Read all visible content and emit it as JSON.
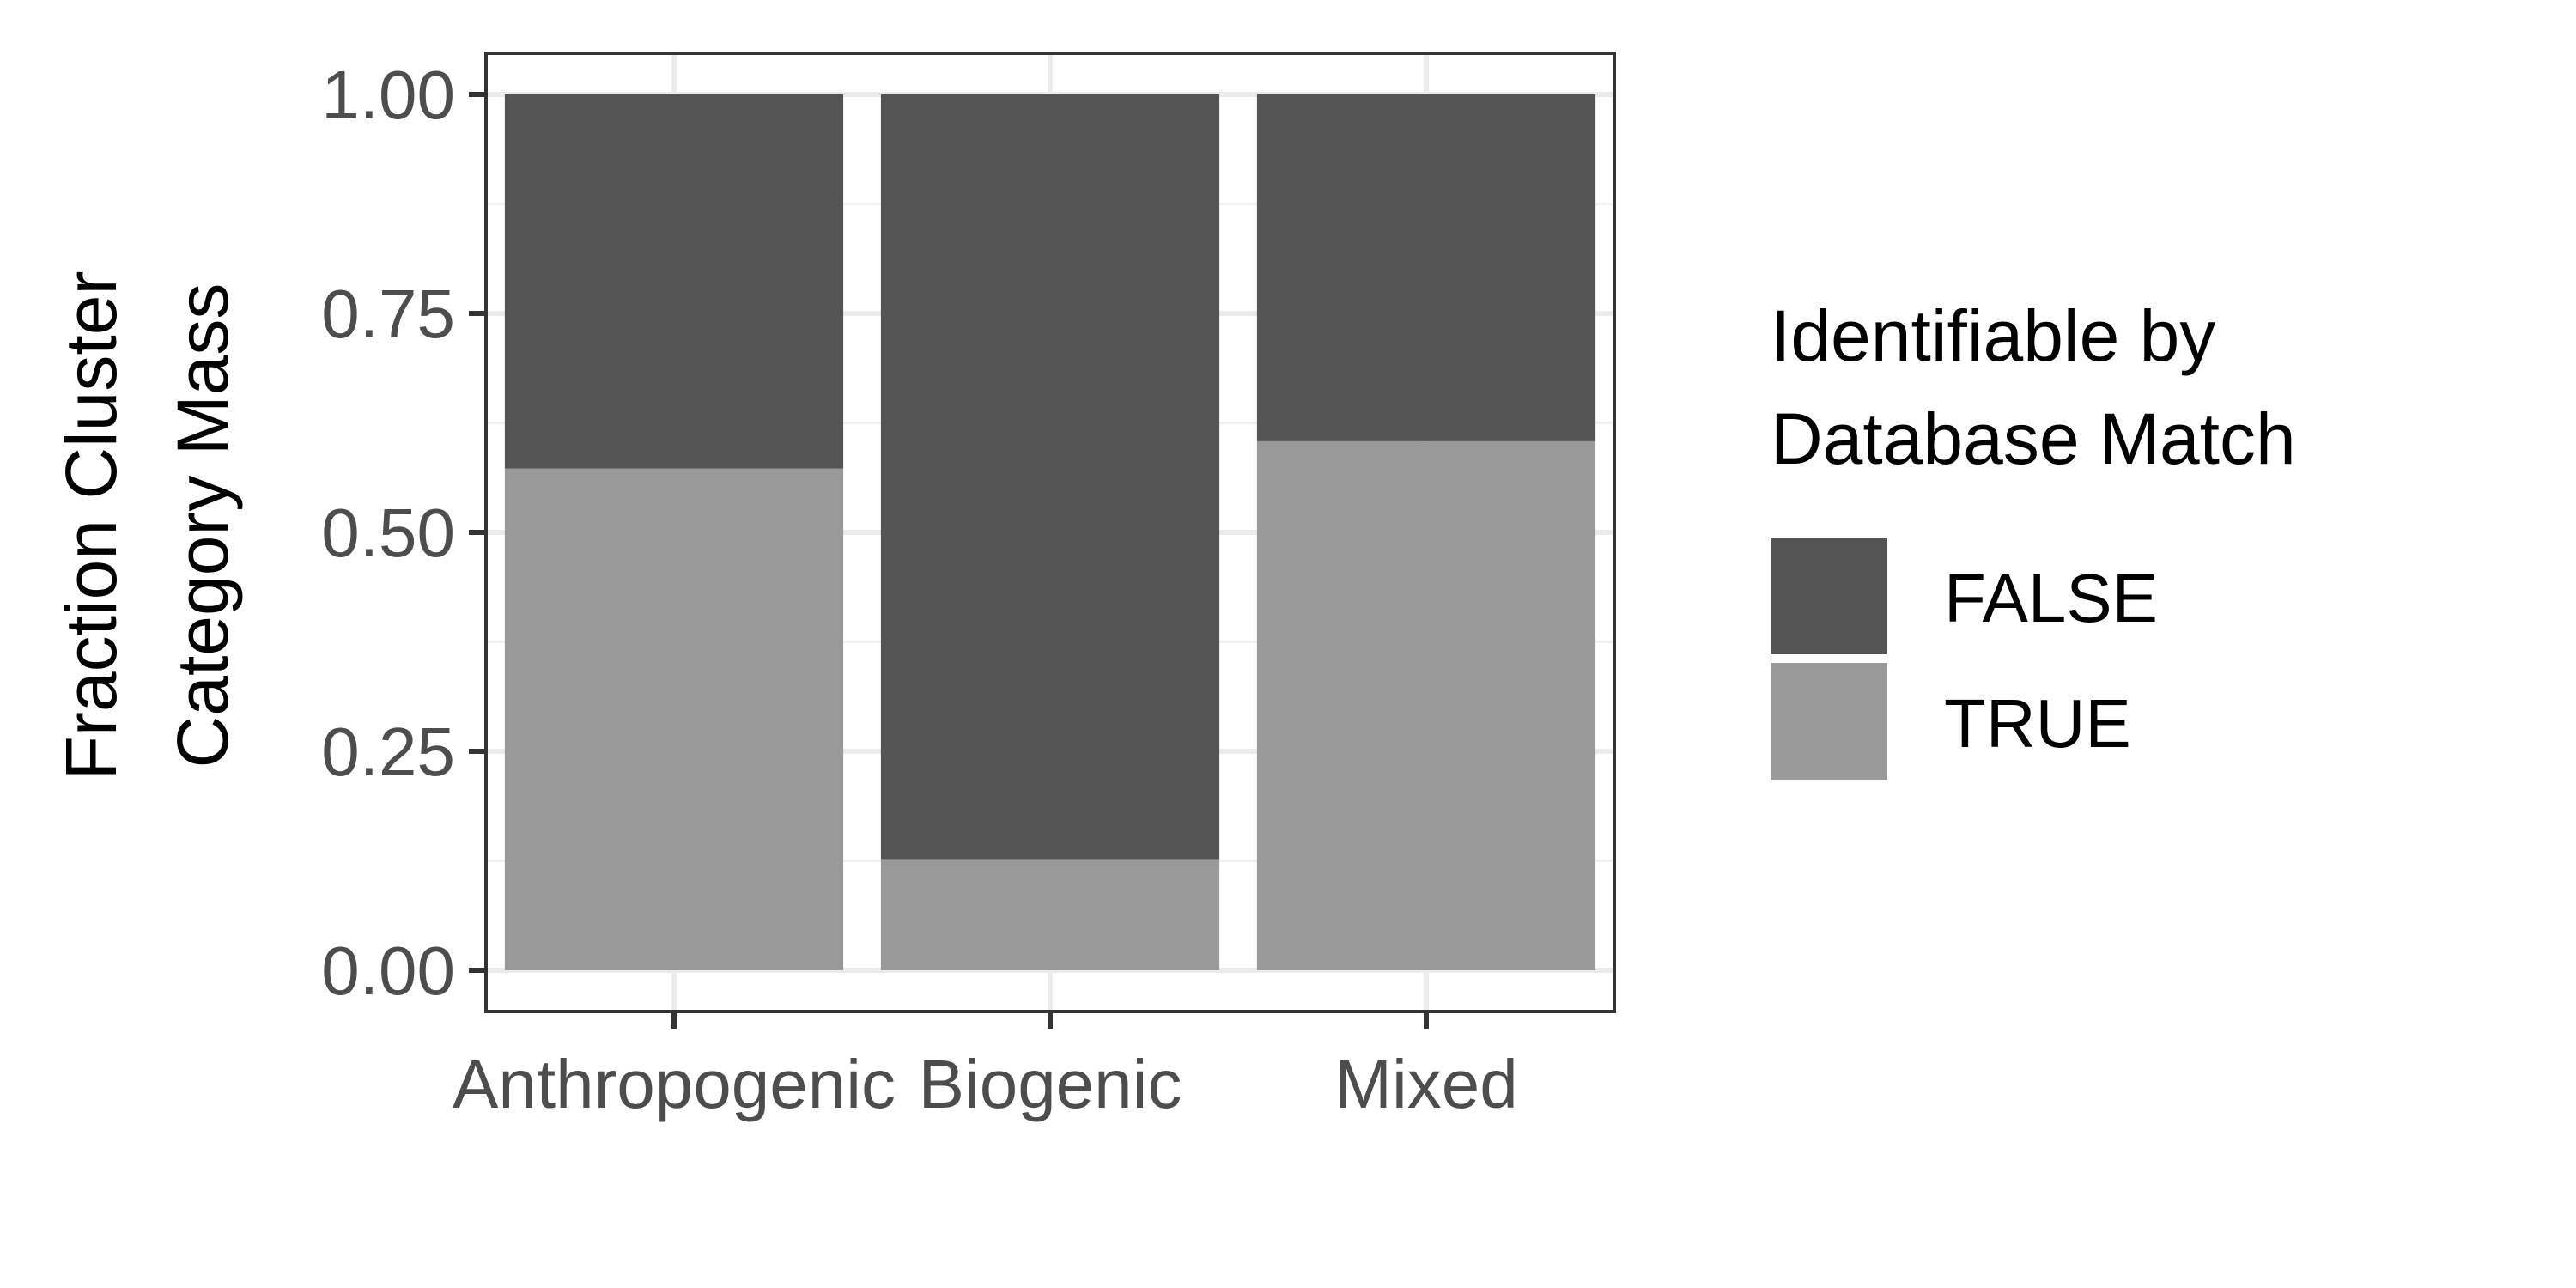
{
  "chart_data": {
    "type": "bar",
    "stacked": true,
    "categories": [
      "Anthropogenic",
      "Biogenic",
      "Mixed"
    ],
    "series": [
      {
        "name": "FALSE",
        "values": [
          0.427,
          0.873,
          0.396
        ],
        "color": "#545454"
      },
      {
        "name": "TRUE",
        "values": [
          0.573,
          0.127,
          0.604
        ],
        "color": "#999999"
      }
    ],
    "ylabel_lines": [
      "Fraction Cluster",
      "Category Mass"
    ],
    "xlabel": "",
    "ylim": [
      0,
      1.05
    ],
    "yticks": [
      "0.00",
      "0.25",
      "0.50",
      "0.75",
      "1.00"
    ],
    "ytick_values": [
      0,
      0.25,
      0.5,
      0.75,
      1.0
    ],
    "grid": true,
    "legend": {
      "title_lines": [
        "Identifiable by",
        "Database Match"
      ],
      "position": "right",
      "items": [
        "FALSE",
        "TRUE"
      ]
    }
  }
}
